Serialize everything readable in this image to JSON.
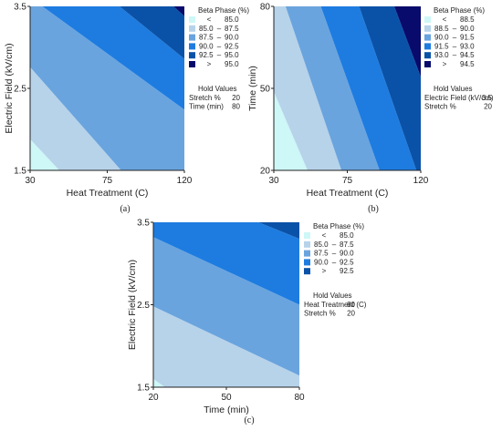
{
  "colors": {
    "c1": "#cef7f7",
    "c2": "#b7d3ea",
    "c3": "#6aa4de",
    "c4": "#1e7ce0",
    "c5": "#0a52a8",
    "c6": "#080b6b"
  },
  "chart_data": [
    {
      "type": "contour",
      "caption": "(a)",
      "xlabel": "Heat Treatment (C)",
      "ylabel": "Electric Field (kV/cm)",
      "x_ticks": [
        "30",
        "75",
        "120"
      ],
      "y_ticks": [
        "1.5",
        "2.5",
        "3.5"
      ],
      "xlim": [
        30,
        120
      ],
      "ylim": [
        1.5,
        3.5
      ],
      "legend": {
        "title": "Beta Phase (%)",
        "entries": [
          {
            "sym": "<",
            "lo": "",
            "hi": "85.0",
            "color": "c1"
          },
          {
            "sym": "",
            "lo": "85.0",
            "hi": "87.5",
            "color": "c2"
          },
          {
            "sym": "",
            "lo": "87.5",
            "hi": "90.0",
            "color": "c3"
          },
          {
            "sym": "",
            "lo": "90.0",
            "hi": "92.5",
            "color": "c4"
          },
          {
            "sym": "",
            "lo": "92.5",
            "hi": "95.0",
            "color": "c5"
          },
          {
            "sym": ">",
            "lo": "",
            "hi": "95.0",
            "color": "c6"
          }
        ]
      },
      "hold": {
        "title": "Hold Values",
        "items": [
          {
            "name": "Stretch %",
            "value": "20"
          },
          {
            "name": "Time (min)",
            "value": "80"
          }
        ]
      }
    },
    {
      "type": "contour",
      "caption": "(b)",
      "xlabel": "Heat Treatment (C)",
      "ylabel": "Time (min)",
      "x_ticks": [
        "30",
        "75",
        "120"
      ],
      "y_ticks": [
        "20",
        "50",
        "80"
      ],
      "xlim": [
        30,
        120
      ],
      "ylim": [
        20,
        80
      ],
      "legend": {
        "title": "Beta Phase (%)",
        "entries": [
          {
            "sym": "<",
            "lo": "",
            "hi": "88.5",
            "color": "c1"
          },
          {
            "sym": "",
            "lo": "88.5",
            "hi": "90.0",
            "color": "c2"
          },
          {
            "sym": "",
            "lo": "90.0",
            "hi": "91.5",
            "color": "c3"
          },
          {
            "sym": "",
            "lo": "91.5",
            "hi": "93.0",
            "color": "c4"
          },
          {
            "sym": "",
            "lo": "93.0",
            "hi": "94.5",
            "color": "c5"
          },
          {
            "sym": ">",
            "lo": "",
            "hi": "94.5",
            "color": "c6"
          }
        ]
      },
      "hold": {
        "title": "Hold Values",
        "items": [
          {
            "name": "Electric Field (kV/cm)",
            "value": "3.5"
          },
          {
            "name": "Stretch %",
            "value": "20"
          }
        ]
      }
    },
    {
      "type": "contour",
      "caption": "(c)",
      "xlabel": "Time (min)",
      "ylabel": "Electric Field (kV/cm)",
      "x_ticks": [
        "20",
        "50",
        "80"
      ],
      "y_ticks": [
        "1.5",
        "2.5",
        "3.5"
      ],
      "xlim": [
        20,
        80
      ],
      "ylim": [
        1.5,
        3.5
      ],
      "legend": {
        "title": "Beta Phase (%)",
        "entries": [
          {
            "sym": "<",
            "lo": "",
            "hi": "85.0",
            "color": "c1"
          },
          {
            "sym": "",
            "lo": "85.0",
            "hi": "87.5",
            "color": "c2"
          },
          {
            "sym": "",
            "lo": "87.5",
            "hi": "90.0",
            "color": "c3"
          },
          {
            "sym": "",
            "lo": "90.0",
            "hi": "92.5",
            "color": "c4"
          },
          {
            "sym": ">",
            "lo": "",
            "hi": "92.5",
            "color": "c5"
          }
        ]
      },
      "hold": {
        "title": "Hold Values",
        "items": [
          {
            "name": "Heat Treatment (C)",
            "value": "80"
          },
          {
            "name": "Stretch %",
            "value": "20"
          }
        ]
      }
    }
  ]
}
